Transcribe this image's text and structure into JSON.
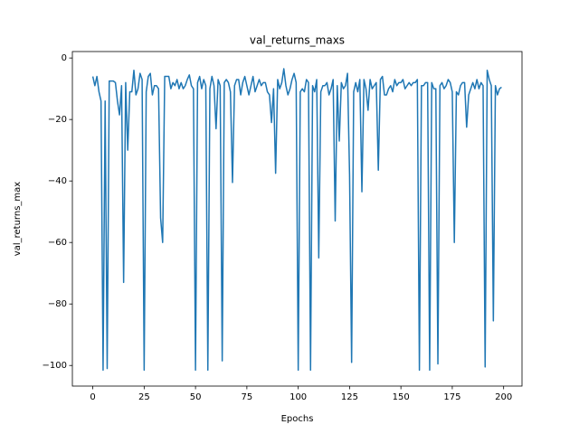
{
  "chart_data": {
    "type": "line",
    "title": "val_returns_maxs",
    "x_label": "Epochs",
    "y_label": "val_returns_max",
    "color": "#1f77b4",
    "x": [
      0,
      1,
      2,
      3,
      4,
      5,
      6,
      7,
      8,
      9,
      10,
      11,
      12,
      13,
      14,
      15,
      16,
      17,
      18,
      19,
      20,
      21,
      22,
      23,
      24,
      25,
      26,
      27,
      28,
      29,
      30,
      31,
      32,
      33,
      34,
      35,
      36,
      37,
      38,
      39,
      40,
      41,
      42,
      43,
      44,
      45,
      46,
      47,
      48,
      49,
      50,
      51,
      52,
      53,
      54,
      55,
      56,
      57,
      58,
      59,
      60,
      61,
      62,
      63,
      64,
      65,
      66,
      67,
      68,
      69,
      70,
      71,
      72,
      73,
      74,
      75,
      76,
      77,
      78,
      79,
      80,
      81,
      82,
      83,
      84,
      85,
      86,
      87,
      88,
      89,
      90,
      91,
      92,
      93,
      94,
      95,
      96,
      97,
      98,
      99,
      100,
      101,
      102,
      103,
      104,
      105,
      106,
      107,
      108,
      109,
      110,
      111,
      112,
      113,
      114,
      115,
      116,
      117,
      118,
      119,
      120,
      121,
      122,
      123,
      124,
      125,
      126,
      127,
      128,
      129,
      130,
      131,
      132,
      133,
      134,
      135,
      136,
      137,
      138,
      139,
      140,
      141,
      142,
      143,
      144,
      145,
      146,
      147,
      148,
      149,
      150,
      151,
      152,
      153,
      154,
      155,
      156,
      157,
      158,
      159,
      160,
      161,
      162,
      163,
      164,
      165,
      166,
      167,
      168,
      169,
      170,
      171,
      172,
      173,
      174,
      175,
      176,
      177,
      178,
      179,
      180,
      181,
      182,
      183,
      184,
      185,
      186,
      187,
      188,
      189,
      190,
      191,
      192,
      193,
      194,
      195,
      196,
      197,
      198,
      199
    ],
    "values": [
      -6,
      -9,
      -6,
      -11,
      -14,
      -101.5,
      -14,
      -101,
      -7.5,
      -7.5,
      -7.5,
      -8,
      -14,
      -18.5,
      -9,
      -73,
      -8,
      -30,
      -11,
      -11,
      -4,
      -12,
      -10,
      -5,
      -7,
      -101.5,
      -11,
      -6,
      -5,
      -12,
      -9,
      -9,
      -10,
      -52,
      -60,
      -6,
      -6,
      -6,
      -10,
      -8,
      -9,
      -7,
      -10,
      -8,
      -10,
      -9,
      -7,
      -5.5,
      -9,
      -10,
      -101.5,
      -8,
      -6,
      -10,
      -7,
      -9,
      -101.5,
      -10,
      -6,
      -9,
      -23,
      -7,
      -9,
      -98.5,
      -8,
      -7,
      -8,
      -11,
      -40.5,
      -9,
      -7,
      -7,
      -12,
      -8,
      -6,
      -9,
      -12,
      -9,
      -6,
      -11,
      -9,
      -7,
      -9,
      -8,
      -8,
      -11,
      -12,
      -21,
      -10,
      -37.5,
      -7,
      -10,
      -8,
      -3.5,
      -9,
      -12,
      -10,
      -7,
      -5,
      -8,
      -101.5,
      -11,
      -10,
      -11,
      -7,
      -8,
      -101.5,
      -9,
      -11,
      -7,
      -65,
      -11,
      -9,
      -9,
      -8,
      -12,
      -10,
      -7,
      -53,
      -9,
      -27,
      -8,
      -10,
      -9,
      -5,
      -38,
      -99,
      -11,
      -8,
      -11,
      -7,
      -43.5,
      -7,
      -10,
      -17,
      -7,
      -10,
      -9,
      -8,
      -36.5,
      -7,
      -6,
      -12,
      -12,
      -10,
      -9,
      -11,
      -7,
      -9,
      -8,
      -8,
      -7,
      -10,
      -9,
      -8,
      -9,
      -8,
      -8,
      -7,
      -101.5,
      -9,
      -9,
      -8,
      -8,
      -101.5,
      -8,
      -10,
      -10,
      -99.5,
      -9,
      -8,
      -10,
      -9,
      -7,
      -8,
      -11,
      -60,
      -11,
      -12,
      -9,
      -8,
      -8,
      -22.5,
      -12,
      -10,
      -8,
      -10,
      -7,
      -10,
      -8,
      -9,
      -100.5,
      -4,
      -7,
      -9,
      -85.5,
      -9,
      -12,
      -10,
      -9.5
    ],
    "xlim": [
      -9.95,
      208.95
    ],
    "xticks": [
      0,
      25,
      50,
      75,
      100,
      125,
      150,
      175,
      200
    ],
    "ylim": [
      -106.7,
      2.1
    ],
    "yticks": [
      {
        "value": 0,
        "label": "0"
      },
      {
        "value": -20,
        "label": "−20"
      },
      {
        "value": -40,
        "label": "−40"
      },
      {
        "value": -60,
        "label": "−60"
      },
      {
        "value": -80,
        "label": "−80"
      },
      {
        "value": -100,
        "label": "−100"
      }
    ]
  }
}
